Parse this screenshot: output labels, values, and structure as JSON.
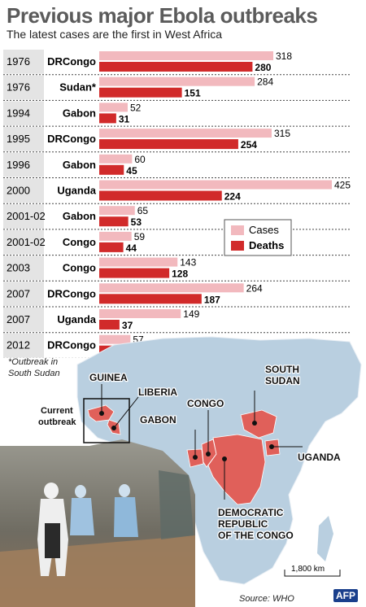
{
  "header": {
    "title": "Previous major Ebola outbreaks",
    "subtitle": "The latest cases are the first in West Africa"
  },
  "legend": {
    "cases_label": "Cases",
    "deaths_label": "Deaths"
  },
  "colors": {
    "cases": "#f2b9be",
    "deaths": "#d12a2a",
    "map_land": "#b9cfe0",
    "affected": "#e0605a",
    "year_band": "#e4e4e4"
  },
  "chart_data": {
    "type": "bar",
    "orientation": "horizontal",
    "categories": [
      {
        "year": "1976",
        "country": "DRCongo"
      },
      {
        "year": "1976",
        "country": "Sudan*"
      },
      {
        "year": "1994",
        "country": "Gabon"
      },
      {
        "year": "1995",
        "country": "DRCongo"
      },
      {
        "year": "1996",
        "country": "Gabon"
      },
      {
        "year": "2000",
        "country": "Uganda"
      },
      {
        "year": "2001-02",
        "country": "Gabon"
      },
      {
        "year": "2001-02",
        "country": "Congo"
      },
      {
        "year": "2003",
        "country": "Congo"
      },
      {
        "year": "2007",
        "country": "DRCongo"
      },
      {
        "year": "2007",
        "country": "Uganda"
      },
      {
        "year": "2012",
        "country": "DRCongo"
      }
    ],
    "series": [
      {
        "name": "Cases",
        "values": [
          318,
          284,
          52,
          315,
          60,
          425,
          65,
          59,
          143,
          264,
          149,
          57
        ]
      },
      {
        "name": "Deaths",
        "values": [
          280,
          151,
          31,
          254,
          45,
          224,
          53,
          44,
          128,
          187,
          37,
          29
        ]
      }
    ],
    "xlim": [
      0,
      425
    ],
    "legend_position": "right"
  },
  "footnote": {
    "line1": "*Outbreak in",
    "line2": "South Sudan"
  },
  "map": {
    "labels": {
      "guinea": "GUINEA",
      "liberia": "LIBERIA",
      "current": "Current",
      "outbreak": "outbreak",
      "gabon": "GABON",
      "congo": "CONGO",
      "south1": "SOUTH",
      "south2": "SUDAN",
      "uganda": "UGANDA",
      "drc1": "DEMOCRATIC",
      "drc2": "REPUBLIC",
      "drc3": "OF THE CONGO"
    },
    "scale": "1,800 km"
  },
  "source": "Source: WHO",
  "credit": "AFP"
}
